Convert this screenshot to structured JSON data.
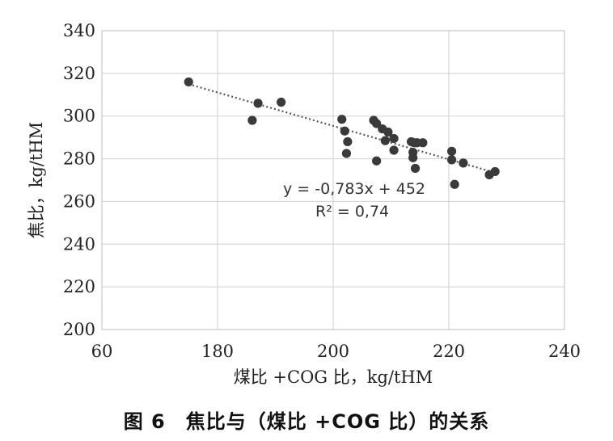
{
  "chart_data": {
    "type": "scatter",
    "xlabel": "煤比 +COG 比，kg/tHM",
    "ylabel": "焦比，kg/tHM",
    "x_tick_labels": [
      "60",
      "180",
      "200",
      "220",
      "240"
    ],
    "y_ticks": [
      200,
      220,
      240,
      260,
      280,
      300,
      320,
      340
    ],
    "ylim": [
      200,
      340
    ],
    "grid": true,
    "points": [
      {
        "x": 175,
        "y": 316
      },
      {
        "x": 186,
        "y": 298
      },
      {
        "x": 187,
        "y": 306
      },
      {
        "x": 191,
        "y": 306.5
      },
      {
        "x": 201.5,
        "y": 298.5
      },
      {
        "x": 202,
        "y": 293
      },
      {
        "x": 202.5,
        "y": 288
      },
      {
        "x": 202.3,
        "y": 282.5
      },
      {
        "x": 207,
        "y": 298
      },
      {
        "x": 207.5,
        "y": 296.5
      },
      {
        "x": 208.5,
        "y": 294
      },
      {
        "x": 209.5,
        "y": 292.5
      },
      {
        "x": 209,
        "y": 288.5
      },
      {
        "x": 210.5,
        "y": 289.5
      },
      {
        "x": 210.5,
        "y": 284
      },
      {
        "x": 207.5,
        "y": 279
      },
      {
        "x": 213.5,
        "y": 288
      },
      {
        "x": 214,
        "y": 287.5
      },
      {
        "x": 214.5,
        "y": 287.5
      },
      {
        "x": 215.5,
        "y": 287.5
      },
      {
        "x": 213.8,
        "y": 283
      },
      {
        "x": 213.8,
        "y": 280.5
      },
      {
        "x": 214.2,
        "y": 275.5
      },
      {
        "x": 220.5,
        "y": 283.5
      },
      {
        "x": 220.5,
        "y": 279.5
      },
      {
        "x": 221,
        "y": 268
      },
      {
        "x": 222.5,
        "y": 278
      },
      {
        "x": 227,
        "y": 272.5
      },
      {
        "x": 228,
        "y": 274
      }
    ],
    "trendline": {
      "slope": -0.783,
      "intercept": 452,
      "style": "dotted"
    },
    "equation_label": "y = -0,783x + 452",
    "r2_label": "R² = 0,74",
    "colors": {
      "points": "#3a3a3a",
      "grid": "#cfcfcf",
      "trend": "#555555"
    }
  },
  "caption": "图 6　焦比与（煤比 +COG 比）的关系"
}
